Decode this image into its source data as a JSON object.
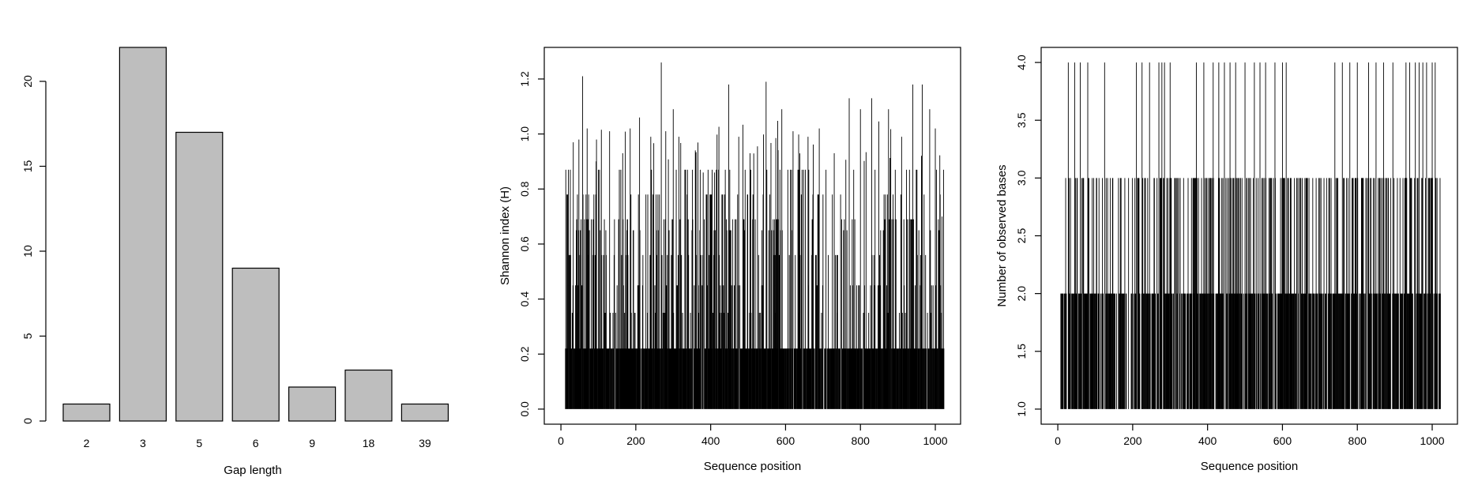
{
  "chart_data": [
    {
      "type": "bar",
      "categories": [
        "2",
        "3",
        "5",
        "6",
        "9",
        "18",
        "39"
      ],
      "values": [
        1,
        22,
        17,
        9,
        2,
        3,
        1
      ],
      "xlabel": "Gap length",
      "ylabel": "",
      "ylim": [
        0,
        22
      ],
      "yticks": [
        "0",
        "5",
        "10",
        "15",
        "20"
      ],
      "bar_color": "#bebebe",
      "grid": false
    },
    {
      "type": "line",
      "xlabel": "Sequence position",
      "ylabel": "Shannon index (H)",
      "xlim": [
        0,
        1023
      ],
      "ylim": [
        0,
        1.26
      ],
      "xticks": [
        "0",
        "200",
        "400",
        "600",
        "800",
        "1000"
      ],
      "yticks": [
        "0.0",
        "0.2",
        "0.4",
        "0.6",
        "0.8",
        "1.0",
        "1.2"
      ],
      "style": "vertical spikes (type h)",
      "n_points": 1023,
      "peaks": [
        {
          "x": 16,
          "y": 0.78
        },
        {
          "x": 33,
          "y": 0.97
        },
        {
          "x": 48,
          "y": 0.98
        },
        {
          "x": 58,
          "y": 1.21
        },
        {
          "x": 70,
          "y": 1.02
        },
        {
          "x": 95,
          "y": 0.98
        },
        {
          "x": 130,
          "y": 1.01
        },
        {
          "x": 165,
          "y": 0.93
        },
        {
          "x": 185,
          "y": 1.02
        },
        {
          "x": 210,
          "y": 1.06
        },
        {
          "x": 240,
          "y": 0.99
        },
        {
          "x": 268,
          "y": 1.26
        },
        {
          "x": 280,
          "y": 1.01
        },
        {
          "x": 300,
          "y": 1.09
        },
        {
          "x": 315,
          "y": 0.99
        },
        {
          "x": 360,
          "y": 0.93
        },
        {
          "x": 380,
          "y": 0.86
        },
        {
          "x": 410,
          "y": 0.86
        },
        {
          "x": 448,
          "y": 1.18
        },
        {
          "x": 475,
          "y": 0.99
        },
        {
          "x": 505,
          "y": 0.93
        },
        {
          "x": 548,
          "y": 1.19
        },
        {
          "x": 590,
          "y": 1.09
        },
        {
          "x": 620,
          "y": 1.01
        },
        {
          "x": 660,
          "y": 0.99
        },
        {
          "x": 690,
          "y": 1.02
        },
        {
          "x": 730,
          "y": 0.93
        },
        {
          "x": 770,
          "y": 1.13
        },
        {
          "x": 800,
          "y": 1.09
        },
        {
          "x": 830,
          "y": 1.13
        },
        {
          "x": 875,
          "y": 1.09
        },
        {
          "x": 910,
          "y": 0.99
        },
        {
          "x": 940,
          "y": 1.18
        },
        {
          "x": 965,
          "y": 1.18
        },
        {
          "x": 985,
          "y": 1.09
        },
        {
          "x": 1000,
          "y": 1.02
        },
        {
          "x": 1018,
          "y": 0.7
        }
      ]
    },
    {
      "type": "line",
      "xlabel": "Sequence position",
      "ylabel": "Number of observed bases",
      "xlim": [
        0,
        1023
      ],
      "ylim": [
        1.0,
        4.0
      ],
      "xticks": [
        "0",
        "200",
        "400",
        "600",
        "800",
        "1000"
      ],
      "yticks": [
        "1.0",
        "1.5",
        "2.0",
        "2.5",
        "3.0",
        "3.5",
        "4.0"
      ],
      "style": "vertical spikes (type h)",
      "n_points": 1023,
      "levels": [
        1,
        2,
        3,
        4
      ],
      "four_base_positions": [
        28,
        45,
        60,
        80,
        125,
        210,
        225,
        245,
        270,
        278,
        285,
        300,
        370,
        390,
        415,
        430,
        445,
        460,
        475,
        500,
        525,
        540,
        555,
        580,
        600,
        610,
        740,
        760,
        780,
        800,
        830,
        850,
        870,
        895,
        930,
        940,
        955,
        965,
        975,
        985,
        1000,
        1008
      ]
    }
  ]
}
